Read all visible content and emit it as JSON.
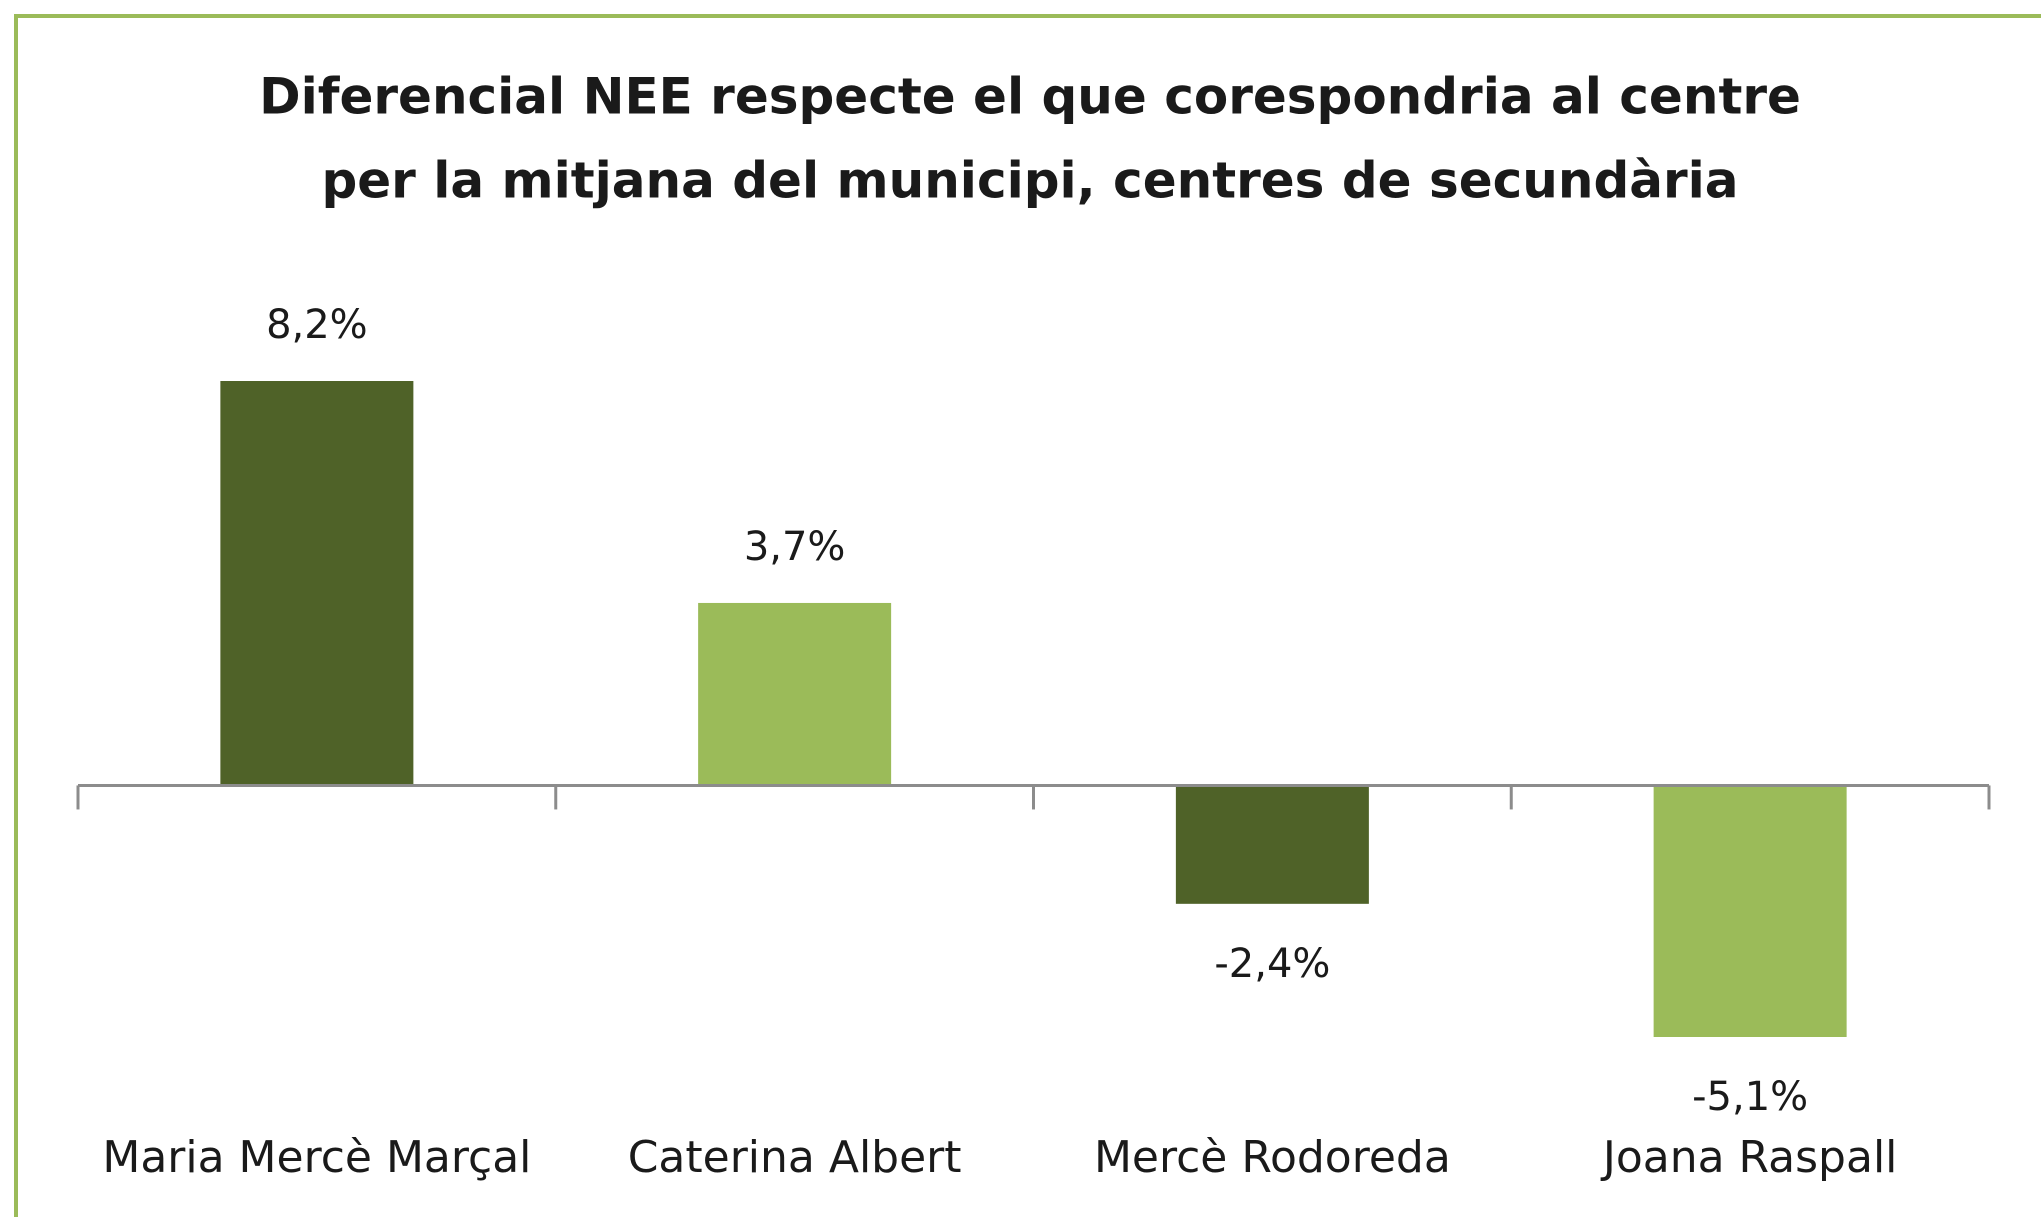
{
  "chart_data": {
    "type": "bar",
    "title": [
      "Diferencial NEE respecte el que corespondria al centre",
      "per la mitjana del municipi, centres de secundària"
    ],
    "categories": [
      "Maria Mercè Marçal",
      "Caterina Albert",
      "Mercè Rodoreda",
      "Joana Raspall"
    ],
    "values": [
      8.2,
      3.7,
      -2.4,
      -5.1
    ],
    "value_labels": [
      "8,2%",
      "3,7%",
      "-2,4%",
      "-5,1%"
    ],
    "colors": [
      "#4f6228",
      "#9bbb59",
      "#4f6228",
      "#9bbb59"
    ]
  }
}
